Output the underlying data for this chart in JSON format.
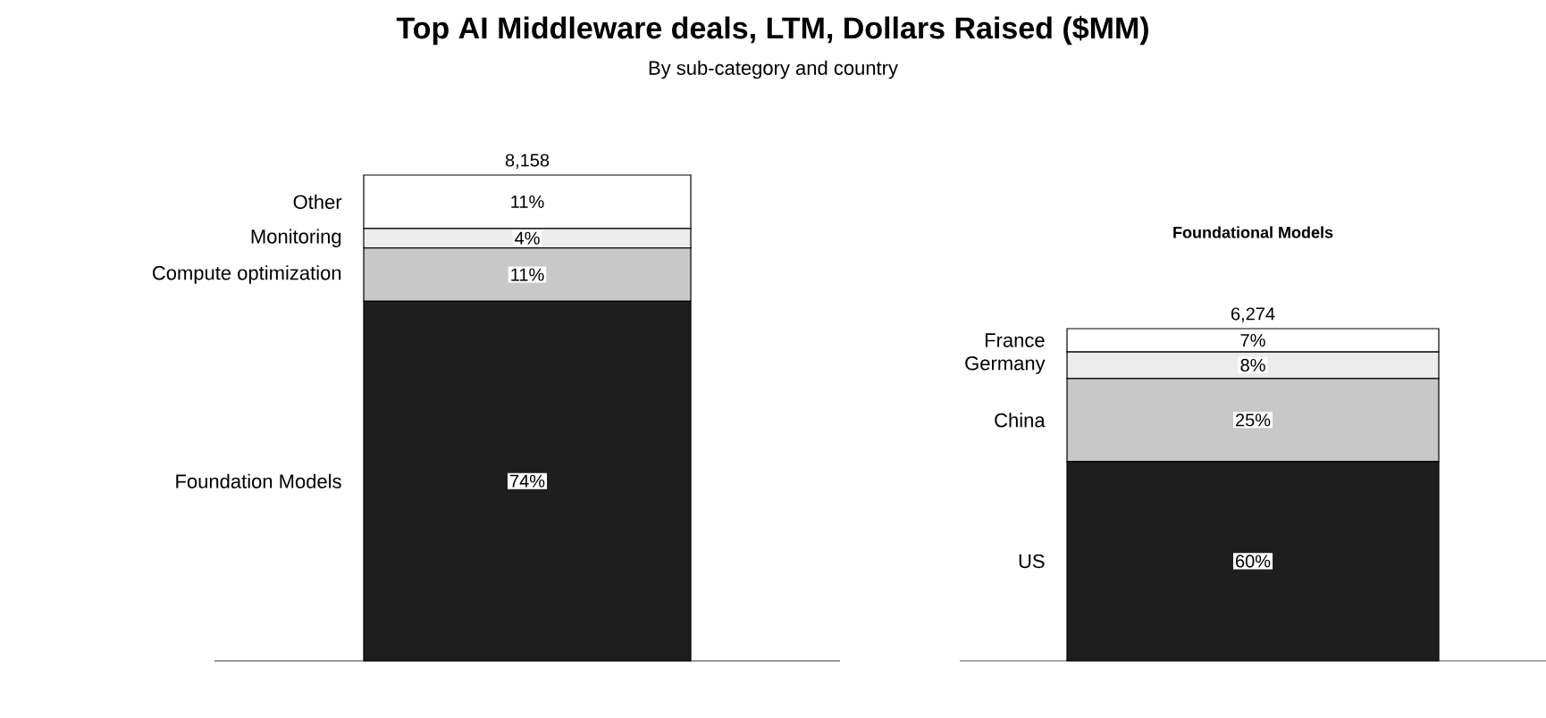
{
  "chart_data": [
    {
      "type": "bar",
      "title": "Top AI Middleware deals, LTM, Dollars Raised ($MM)",
      "subtitle": "By sub-category and country",
      "categories": [
        null
      ],
      "stacked": true,
      "annotations": [
        "8,158"
      ],
      "series": [
        {
          "name": "Foundation Models",
          "color": "#1e1e1e",
          "values": [
            74
          ],
          "value_labels": [
            "74%"
          ]
        },
        {
          "name": "Compute optimization",
          "color": "#c8c8c8",
          "values": [
            11
          ],
          "value_labels": [
            "11%"
          ]
        },
        {
          "name": "Monitoring",
          "color": "#ececec",
          "values": [
            4
          ],
          "value_labels": [
            "4%"
          ]
        },
        {
          "name": "Other",
          "color": "#ffffff",
          "values": [
            11
          ],
          "value_labels": [
            "11%"
          ]
        }
      ]
    },
    {
      "type": "bar",
      "title": "Foundational Models",
      "categories": [
        null
      ],
      "stacked": true,
      "annotations": [
        "6,274"
      ],
      "series": [
        {
          "name": "US",
          "color": "#1e1e1e",
          "values": [
            60
          ],
          "value_labels": [
            "60%"
          ]
        },
        {
          "name": "China",
          "color": "#c8c8c8",
          "values": [
            25
          ],
          "value_labels": [
            "25%"
          ]
        },
        {
          "name": "Germany",
          "color": "#ececec",
          "values": [
            8
          ],
          "value_labels": [
            "8%"
          ]
        },
        {
          "name": "France",
          "color": "#ffffff",
          "values": [
            7
          ],
          "value_labels": [
            "7%"
          ]
        }
      ]
    }
  ]
}
